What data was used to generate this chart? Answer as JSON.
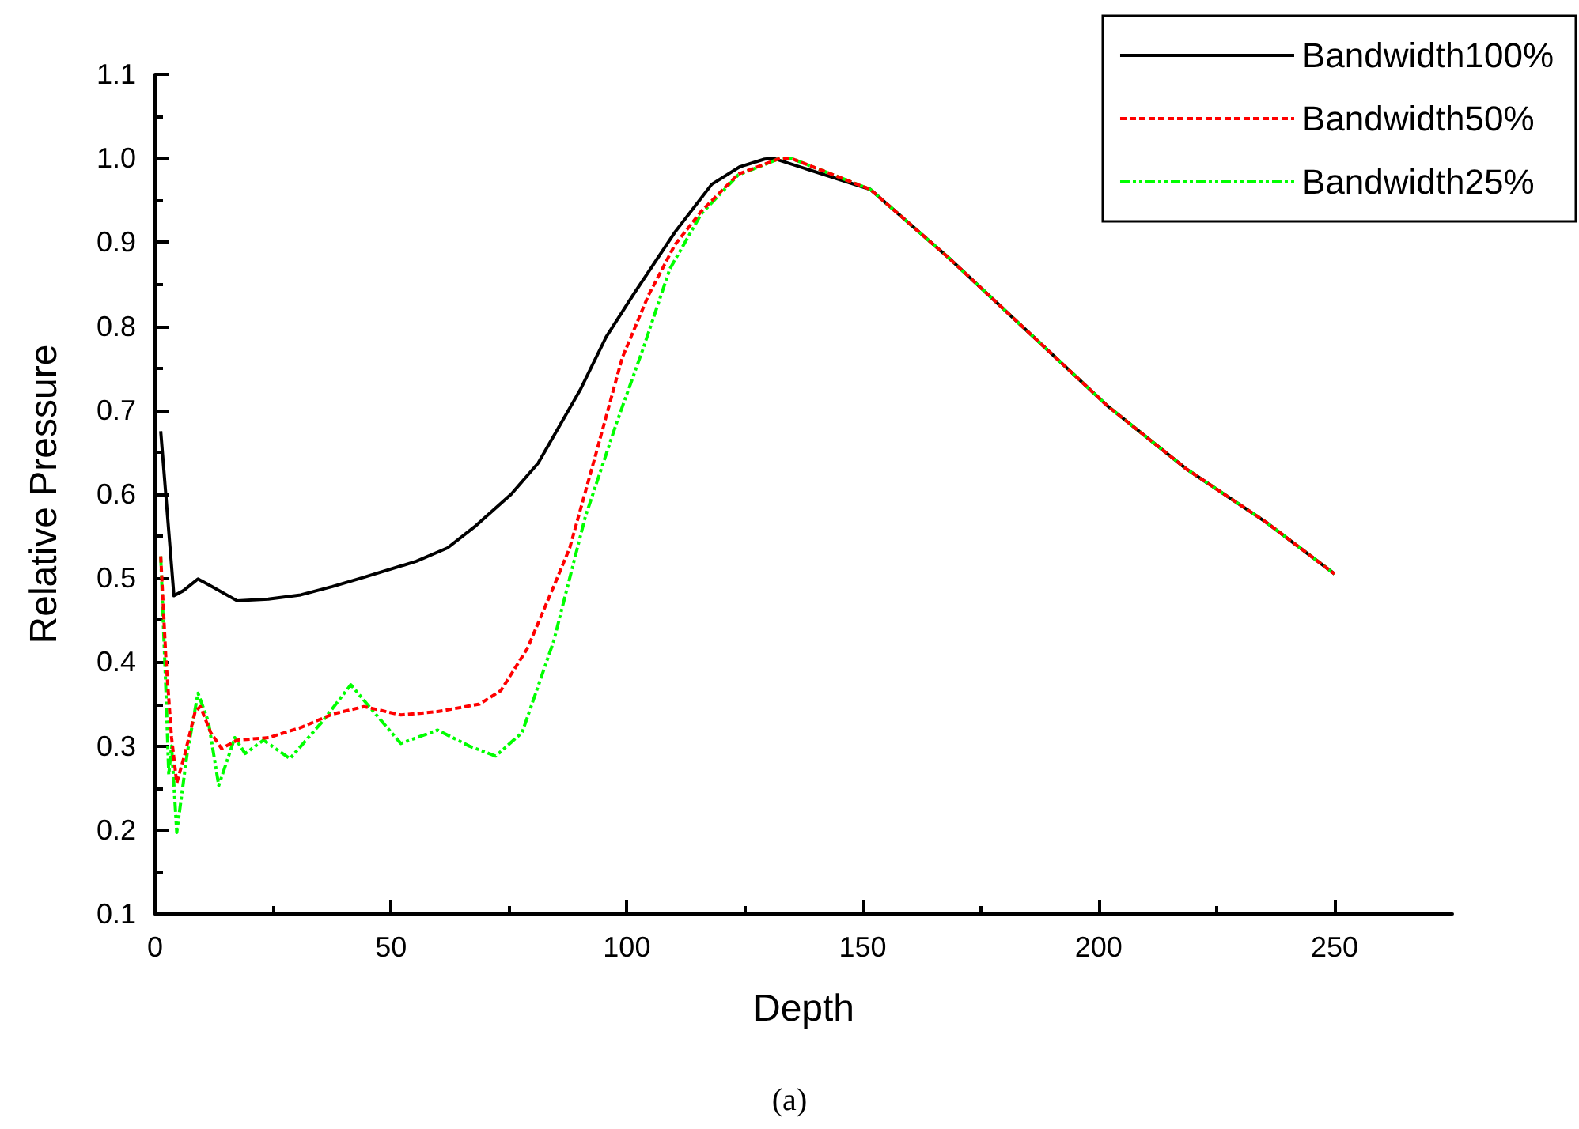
{
  "chart_data": {
    "type": "line",
    "xlabel": "Depth",
    "ylabel": "Relative Pressure",
    "xlim": [
      0,
      275
    ],
    "xticks": [
      0,
      50,
      100,
      150,
      200,
      250
    ],
    "ylim": [
      0.1,
      1.1
    ],
    "yticks": [
      {
        "value": 0.1,
        "label": "0.1"
      },
      {
        "value": 0.2,
        "label": "0.2"
      },
      {
        "value": 0.3,
        "label": "0.3"
      },
      {
        "value": 0.4,
        "label": "0.4"
      },
      {
        "value": 0.5,
        "label": "0.5"
      },
      {
        "value": 0.6,
        "label": "0.6"
      },
      {
        "value": 0.7,
        "label": "0.7"
      },
      {
        "value": 0.8,
        "label": "0.8"
      },
      {
        "value": 0.9,
        "label": "0.9"
      },
      {
        "value": 1.0,
        "label": "1.0"
      },
      {
        "value": 1.1,
        "label": "1.1"
      }
    ],
    "grid": false,
    "legend": "top right",
    "marker": "none",
    "annotations": [
      "(a)"
    ],
    "series": [
      {
        "name": "Bandwidth100%",
        "color": "#000000",
        "line_style": "solid",
        "x": [
          1.2,
          4,
          6,
          9.1,
          12,
          17.4,
          24,
          30.9,
          37.6,
          44.3,
          55.4,
          62,
          67.7,
          75.5,
          81.2,
          90.1,
          95.6,
          101.3,
          110.2,
          118,
          124,
          129.2,
          131,
          151.6,
          168.3,
          185.1,
          201.9,
          218.6,
          235.4,
          250
        ],
        "values": [
          0.675,
          0.479,
          0.485,
          0.499,
          0.49,
          0.473,
          0.475,
          0.48,
          0.49,
          0.501,
          0.52,
          0.536,
          0.561,
          0.6,
          0.637,
          0.724,
          0.787,
          0.837,
          0.912,
          0.969,
          0.99,
          0.999,
          1.0,
          0.963,
          0.881,
          0.793,
          0.705,
          0.63,
          0.567,
          0.505
        ]
      },
      {
        "name": "Bandwidth50%",
        "color": "#ff0000",
        "line_style": "dashed",
        "x": [
          1.2,
          2.3,
          3.5,
          4.6,
          6.3,
          8.5,
          9.6,
          11.8,
          14.1,
          17.4,
          24.1,
          30.9,
          37.6,
          44.3,
          52.1,
          59.9,
          68.8,
          73.3,
          78.9,
          84.5,
          87.9,
          93.5,
          99,
          104.6,
          110.2,
          115.8,
          123.6,
          132.5,
          134.8,
          151.6,
          168.3,
          185.1,
          201.9,
          218.6,
          235.4,
          250
        ],
        "values": [
          0.526,
          0.404,
          0.31,
          0.256,
          0.29,
          0.341,
          0.347,
          0.316,
          0.297,
          0.307,
          0.31,
          0.322,
          0.338,
          0.347,
          0.337,
          0.341,
          0.35,
          0.366,
          0.416,
          0.49,
          0.536,
          0.649,
          0.762,
          0.837,
          0.897,
          0.937,
          0.981,
          1.0,
          1.0,
          0.963,
          0.881,
          0.793,
          0.705,
          0.63,
          0.567,
          0.505
        ]
      },
      {
        "name": "Bandwidth25%",
        "color": "#00ff00",
        "line_style": "dotted",
        "x": [
          1.2,
          2.3,
          2.9,
          3.5,
          4.6,
          6.8,
          9.1,
          11.3,
          13.5,
          16.9,
          19.1,
          23,
          28.6,
          35.3,
          41.5,
          45.4,
          52.1,
          59.9,
          66.6,
          72.2,
          77.8,
          84.5,
          91.2,
          97.9,
          103.5,
          109.1,
          115.8,
          123.6,
          132.5,
          134.8,
          151.6,
          168.3,
          185.1,
          201.9,
          218.6,
          235.4,
          250
        ],
        "values": [
          0.526,
          0.366,
          0.266,
          0.3,
          0.197,
          0.291,
          0.363,
          0.329,
          0.253,
          0.31,
          0.291,
          0.307,
          0.285,
          0.328,
          0.373,
          0.347,
          0.303,
          0.319,
          0.3,
          0.288,
          0.316,
          0.425,
          0.573,
          0.686,
          0.774,
          0.868,
          0.934,
          0.98,
          1.0,
          1.0,
          0.963,
          0.881,
          0.793,
          0.705,
          0.63,
          0.567,
          0.505
        ]
      }
    ]
  }
}
